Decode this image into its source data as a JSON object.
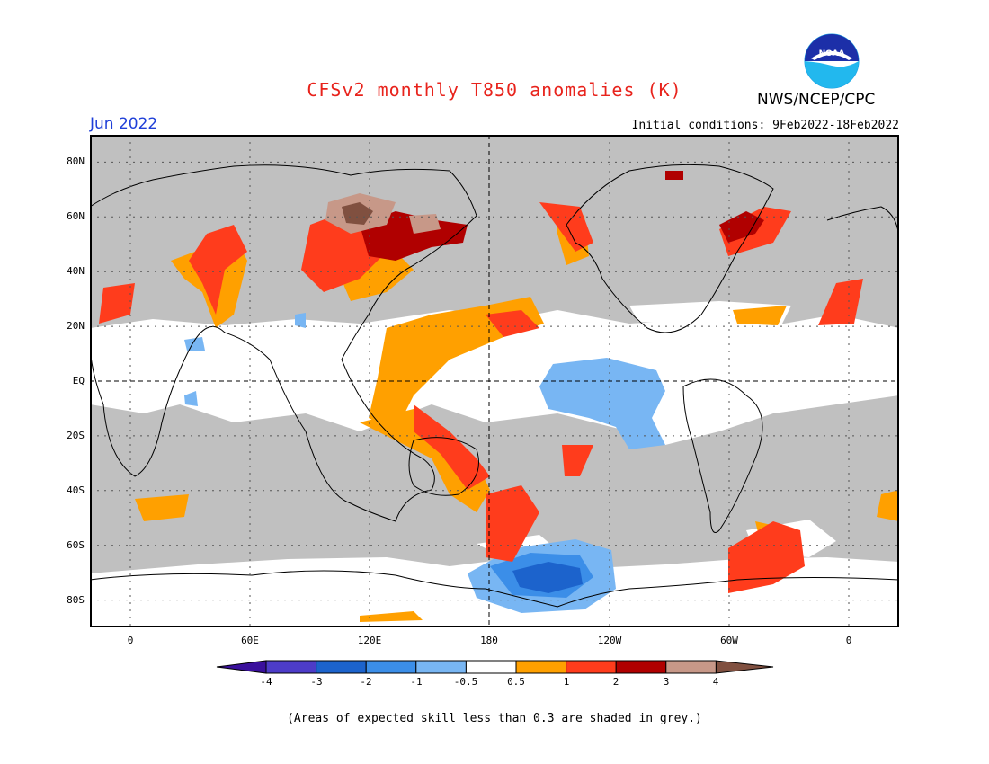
{
  "header": {
    "title": "CFSv2 monthly T850 anomalies (K)",
    "organization": "NWS/NCEP/CPC",
    "logo_text": "NOAA",
    "month": "Jun 2022",
    "initial_conditions": "Initial conditions: 9Feb2022-18Feb2022"
  },
  "map": {
    "lat_labels": [
      "80N",
      "60N",
      "40N",
      "20N",
      "EQ",
      "20S",
      "40S",
      "60S",
      "80S"
    ],
    "lon_labels": [
      "0",
      "60E",
      "120E",
      "180",
      "120W",
      "60W",
      "0"
    ],
    "land_line_color": "#000000",
    "background_grey": "#c0c0c0"
  },
  "colorbar": {
    "labels": [
      "-4",
      "-3",
      "-2",
      "-1",
      "-0.5",
      "0.5",
      "1",
      "2",
      "3",
      "4"
    ],
    "colors": [
      "#3a109c",
      "#4d3cc8",
      "#1c63cc",
      "#3b8ee8",
      "#78b6f3",
      "#ffffff",
      "#ffa000",
      "#ff3c1c",
      "#b00000",
      "#c79888",
      "#805040"
    ]
  },
  "footer": {
    "note": "(Areas of expected skill less than 0.3 are shaded in grey.)"
  }
}
